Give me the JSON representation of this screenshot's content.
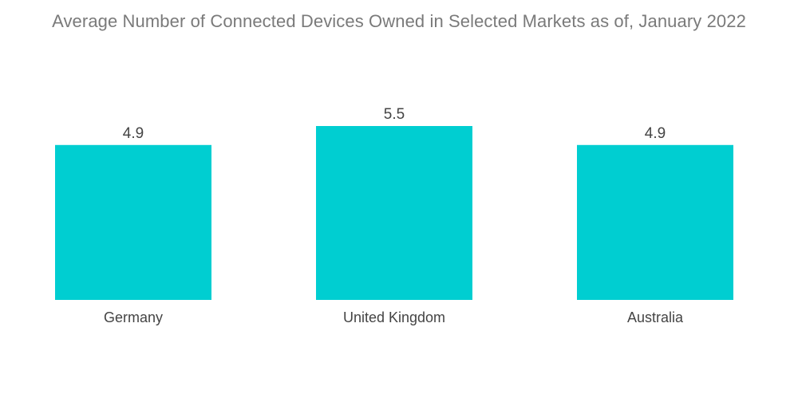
{
  "chart_data": {
    "type": "bar",
    "title": "Average Number of Connected Devices Owned in Selected Markets as of, January 2022",
    "categories": [
      "Germany",
      "United Kingdom",
      "Australia"
    ],
    "values": [
      4.9,
      5.5,
      4.9
    ],
    "value_labels": [
      "4.9",
      "5.5",
      "4.9"
    ],
    "xlabel": "",
    "ylabel": "",
    "ylim": [
      0,
      5.5
    ],
    "grid": false,
    "legend": "none",
    "bar_color": "#00ced1"
  }
}
